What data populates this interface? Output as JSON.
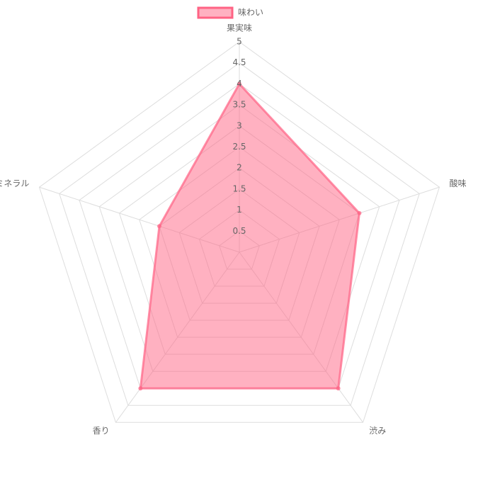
{
  "chart_data": {
    "type": "radar",
    "categories": [
      "果実味",
      "酸味",
      "渋み",
      "香り",
      "ミネラル"
    ],
    "series": [
      {
        "name": "味わい",
        "color": "#ff6384",
        "values": [
          4,
          3,
          4,
          4,
          2
        ]
      }
    ],
    "rlim": [
      0,
      5
    ],
    "rticks": [
      0.5,
      1,
      1.5,
      2,
      2.5,
      3,
      3.5,
      4,
      4.5,
      5
    ],
    "grid": true,
    "legend": "top"
  }
}
